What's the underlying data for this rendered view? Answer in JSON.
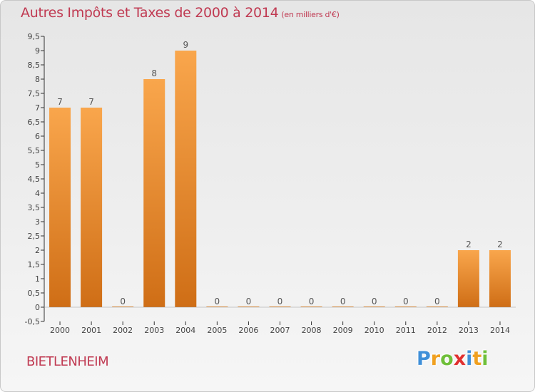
{
  "title": "Autres Impôts et Taxes de 2000 à 2014",
  "unit": "(en milliers d'€)",
  "commune": "BIETLENHEIM",
  "logo": {
    "letters": [
      {
        "char": "P",
        "color": "#3f8fd8"
      },
      {
        "char": "r",
        "color": "#f0a020"
      },
      {
        "char": "o",
        "color": "#6fbf3a"
      },
      {
        "char": "x",
        "color": "#e03030"
      },
      {
        "char": "i",
        "color": "#3f8fd8"
      },
      {
        "char": "t",
        "color": "#f0a020"
      },
      {
        "char": "i",
        "color": "#6fbf3a"
      }
    ]
  },
  "chart_data": {
    "type": "bar",
    "categories": [
      "2000",
      "2001",
      "2002",
      "2003",
      "2004",
      "2005",
      "2006",
      "2007",
      "2008",
      "2009",
      "2010",
      "2011",
      "2012",
      "2013",
      "2014"
    ],
    "values": [
      7,
      7,
      0,
      8,
      9,
      0,
      0,
      0,
      0,
      0,
      0,
      0,
      0,
      2,
      2
    ],
    "ylim": [
      -0.5,
      9.5
    ],
    "yticks": [
      "-0,5",
      "0",
      "0,5",
      "1",
      "1,5",
      "2",
      "2,5",
      "3",
      "3,5",
      "4",
      "4,5",
      "5",
      "5,5",
      "6",
      "6,5",
      "7",
      "7,5",
      "8",
      "8,5",
      "9",
      "9,5"
    ],
    "ytick_values": [
      -0.5,
      0,
      0.5,
      1,
      1.5,
      2,
      2.5,
      3,
      3.5,
      4,
      4.5,
      5,
      5.5,
      6,
      6.5,
      7,
      7.5,
      8,
      8.5,
      9,
      9.5
    ],
    "bar_color_top": "#f9a64c",
    "bar_color_bottom": "#cf6e16",
    "grid": false
  }
}
